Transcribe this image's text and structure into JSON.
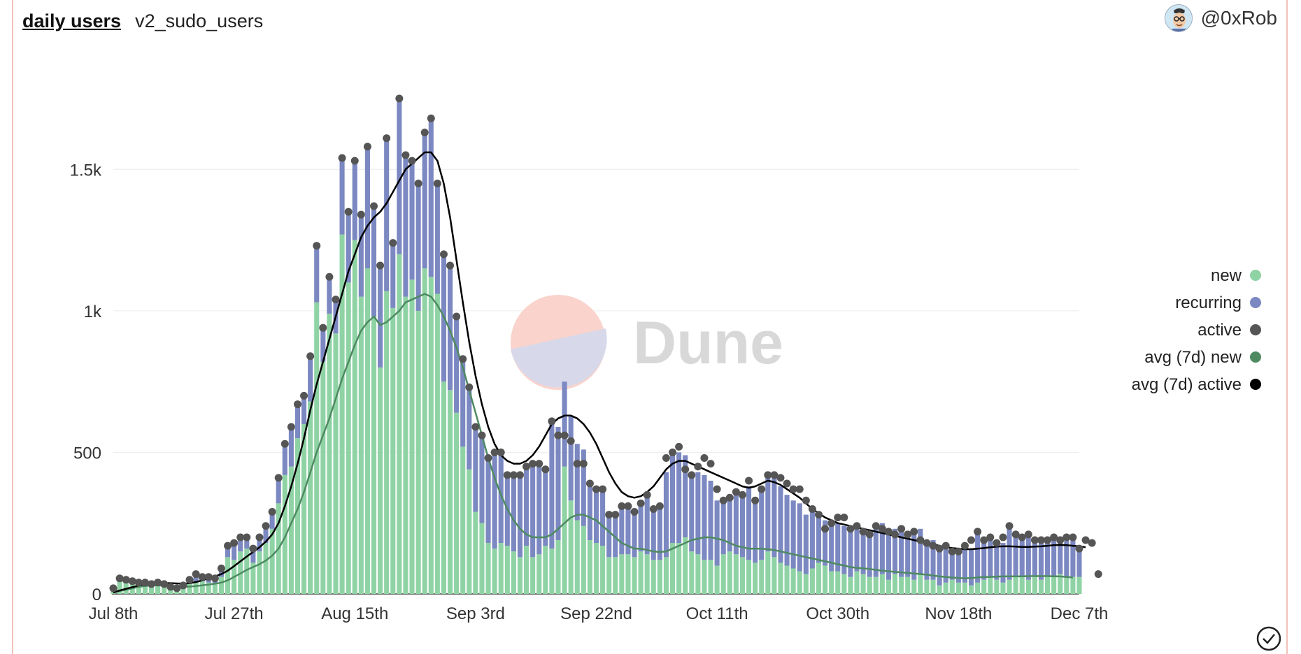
{
  "header": {
    "title": "daily users",
    "subtitle": "v2_sudo_users",
    "user": "@0xRob"
  },
  "watermark": "Dune",
  "colors": {
    "new": "#8fd3a5",
    "recurring": "#7b88c1",
    "active": "#555555",
    "avg_new": "#4e8a61",
    "avg_active": "#000000"
  },
  "chart_data": {
    "type": "bar",
    "stacked": true,
    "title": "daily users",
    "x": {
      "start": "Jul 8th",
      "days": 153,
      "tick_labels": [
        "Jul 8th",
        "Jul 27th",
        "Aug 15th",
        "Sep 3rd",
        "Sep 22nd",
        "Oct 11th",
        "Oct 30th",
        "Nov 18th",
        "Dec 7th"
      ],
      "tick_days": [
        0,
        19,
        38,
        57,
        76,
        95,
        114,
        133,
        152
      ]
    },
    "y": {
      "ylim": [
        0,
        1950
      ],
      "ticks": [
        0,
        500,
        1000,
        1500
      ],
      "tick_labels": [
        "0",
        "500",
        "1k",
        "1.5k"
      ]
    },
    "grid": true,
    "legend_position": "right",
    "series": [
      {
        "name": "new",
        "type": "bar",
        "values": [
          20,
          45,
          40,
          35,
          30,
          30,
          28,
          30,
          25,
          20,
          15,
          25,
          35,
          40,
          45,
          40,
          35,
          60,
          130,
          120,
          150,
          160,
          110,
          150,
          180,
          230,
          320,
          420,
          450,
          550,
          600,
          680,
          1030,
          820,
          990,
          920,
          1270,
          1100,
          1250,
          1050,
          1150,
          980,
          800,
          1070,
          1010,
          1200,
          1050,
          1110,
          1000,
          1150,
          1120,
          1060,
          750,
          720,
          640,
          520,
          440,
          290,
          250,
          180,
          160,
          180,
          170,
          150,
          130,
          170,
          130,
          140,
          170,
          160,
          190,
          450,
          330,
          260,
          240,
          190,
          180,
          170,
          130,
          130,
          140,
          140,
          130,
          150,
          140,
          120,
          120,
          130,
          180,
          180,
          200,
          150,
          140,
          120,
          120,
          100,
          140,
          150,
          140,
          130,
          120,
          110,
          120,
          150,
          130,
          110,
          100,
          90,
          80,
          70,
          90,
          110,
          100,
          80,
          80,
          70,
          60,
          80,
          70,
          60,
          60,
          70,
          50,
          70,
          60,
          60,
          50,
          70,
          50,
          50,
          30,
          40,
          50,
          40,
          40,
          30,
          40,
          50,
          60,
          50,
          40,
          50,
          60,
          60,
          50,
          60,
          50,
          60,
          60,
          70,
          60,
          60,
          60,
          50,
          60,
          60,
          20
        ]
      },
      {
        "name": "recurring",
        "type": "bar",
        "values": [
          0,
          10,
          10,
          10,
          10,
          10,
          7,
          10,
          10,
          5,
          5,
          5,
          15,
          30,
          15,
          20,
          20,
          30,
          40,
          60,
          50,
          40,
          50,
          50,
          60,
          60,
          90,
          110,
          140,
          120,
          100,
          160,
          200,
          120,
          130,
          120,
          270,
          250,
          280,
          290,
          430,
          390,
          360,
          540,
          230,
          550,
          500,
          420,
          450,
          480,
          560,
          390,
          450,
          440,
          340,
          310,
          290,
          300,
          310,
          300,
          340,
          320,
          250,
          270,
          290,
          280,
          330,
          320,
          270,
          450,
          400,
          300,
          300,
          270,
          270,
          200,
          190,
          190,
          150,
          150,
          170,
          170,
          160,
          170,
          210,
          180,
          190,
          300,
          320,
          320,
          290,
          280,
          290,
          300,
          280,
          230,
          180,
          200,
          230,
          230,
          260,
          230,
          250,
          280,
          280,
          270,
          250,
          240,
          240,
          210,
          200,
          180,
          160,
          160,
          170,
          170,
          160,
          170,
          160,
          160,
          170,
          180,
          160,
          160,
          160,
          160,
          170,
          160,
          140,
          140,
          130,
          120,
          110,
          110,
          120,
          130,
          170,
          140,
          150,
          140,
          140,
          180,
          150,
          150,
          150,
          130,
          130,
          130,
          130,
          130,
          140,
          140,
          110,
          130,
          120,
          50
        ]
      },
      {
        "name": "active",
        "type": "scatter",
        "values": [
          20,
          55,
          50,
          45,
          40,
          40,
          35,
          40,
          35,
          25,
          20,
          30,
          50,
          70,
          60,
          60,
          55,
          90,
          170,
          180,
          200,
          200,
          160,
          200,
          240,
          290,
          410,
          530,
          590,
          670,
          700,
          840,
          1230,
          940,
          1120,
          1040,
          1540,
          1350,
          1530,
          1340,
          1580,
          1370,
          1160,
          1610,
          1240,
          1750,
          1550,
          1530,
          1450,
          1630,
          1680,
          1450,
          1200,
          1160,
          980,
          830,
          730,
          590,
          560,
          480,
          500,
          500,
          420,
          420,
          420,
          450,
          460,
          460,
          440,
          610,
          560,
          560,
          540,
          460,
          460,
          390,
          370,
          370,
          280,
          280,
          310,
          310,
          290,
          320,
          350,
          300,
          310,
          480,
          500,
          520,
          440,
          420,
          450,
          480,
          460,
          370,
          330,
          340,
          360,
          350,
          400,
          330,
          370,
          420,
          420,
          410,
          390,
          370,
          370,
          330,
          300,
          280,
          230,
          250,
          270,
          270,
          230,
          240,
          220,
          210,
          240,
          230,
          220,
          210,
          230,
          210,
          220,
          190,
          180,
          170,
          160,
          170,
          150,
          150,
          170,
          190,
          220,
          190,
          200,
          180,
          200,
          240,
          210,
          200,
          210,
          190,
          190,
          190,
          200,
          190,
          200,
          200,
          160,
          190,
          180,
          70
        ]
      },
      {
        "name": "avg (7d) new",
        "type": "line",
        "values": [
          5,
          10,
          15,
          20,
          25,
          28,
          30,
          30,
          29,
          28,
          26,
          25,
          26,
          28,
          30,
          33,
          36,
          40,
          48,
          60,
          72,
          85,
          95,
          105,
          118,
          135,
          160,
          200,
          250,
          300,
          360,
          430,
          500,
          560,
          620,
          690,
          760,
          820,
          880,
          930,
          960,
          980,
          950,
          960,
          980,
          1000,
          1030,
          1040,
          1050,
          1060,
          1050,
          1020,
          980,
          930,
          870,
          800,
          720,
          640,
          560,
          480,
          410,
          350,
          300,
          260,
          230,
          210,
          200,
          200,
          200,
          210,
          230,
          250,
          270,
          280,
          280,
          270,
          260,
          240,
          220,
          200,
          180,
          170,
          160,
          160,
          155,
          150,
          148,
          150,
          160,
          170,
          180,
          190,
          195,
          200,
          200,
          195,
          190,
          180,
          170,
          165,
          160,
          160,
          160,
          158,
          155,
          150,
          145,
          140,
          135,
          130,
          125,
          120,
          115,
          110,
          105,
          100,
          95,
          92,
          90,
          88,
          85,
          82,
          80,
          78,
          76,
          74,
          72,
          70,
          68,
          65,
          62,
          60,
          58,
          56,
          55,
          56,
          58,
          60,
          60,
          61,
          62,
          62,
          62,
          62,
          63,
          63,
          63,
          63,
          62,
          62,
          60,
          58
        ]
      },
      {
        "name": "avg (7d) active",
        "type": "line",
        "values": [
          5,
          12,
          18,
          24,
          30,
          34,
          36,
          37,
          38,
          38,
          37,
          36,
          38,
          42,
          48,
          55,
          62,
          70,
          82,
          98,
          115,
          132,
          148,
          165,
          185,
          210,
          250,
          310,
          380,
          460,
          550,
          650,
          740,
          820,
          900,
          980,
          1060,
          1140,
          1200,
          1260,
          1300,
          1330,
          1350,
          1380,
          1420,
          1460,
          1500,
          1520,
          1540,
          1560,
          1560,
          1530,
          1450,
          1330,
          1180,
          1030,
          890,
          770,
          670,
          590,
          530,
          490,
          470,
          460,
          460,
          470,
          490,
          520,
          560,
          600,
          620,
          630,
          630,
          620,
          600,
          570,
          530,
          480,
          430,
          390,
          360,
          345,
          340,
          345,
          360,
          380,
          410,
          440,
          460,
          470,
          470,
          460,
          450,
          440,
          430,
          420,
          410,
          400,
          390,
          380,
          375,
          380,
          390,
          400,
          395,
          385,
          370,
          355,
          340,
          320,
          300,
          285,
          270,
          260,
          250,
          245,
          240,
          235,
          230,
          225,
          220,
          215,
          210,
          205,
          200,
          195,
          190,
          185,
          180,
          175,
          170,
          165,
          162,
          160,
          158,
          158,
          160,
          162,
          165,
          167,
          168,
          168,
          167,
          166,
          166,
          167,
          168,
          170,
          172,
          173,
          172,
          170,
          168,
          165
        ]
      }
    ]
  }
}
